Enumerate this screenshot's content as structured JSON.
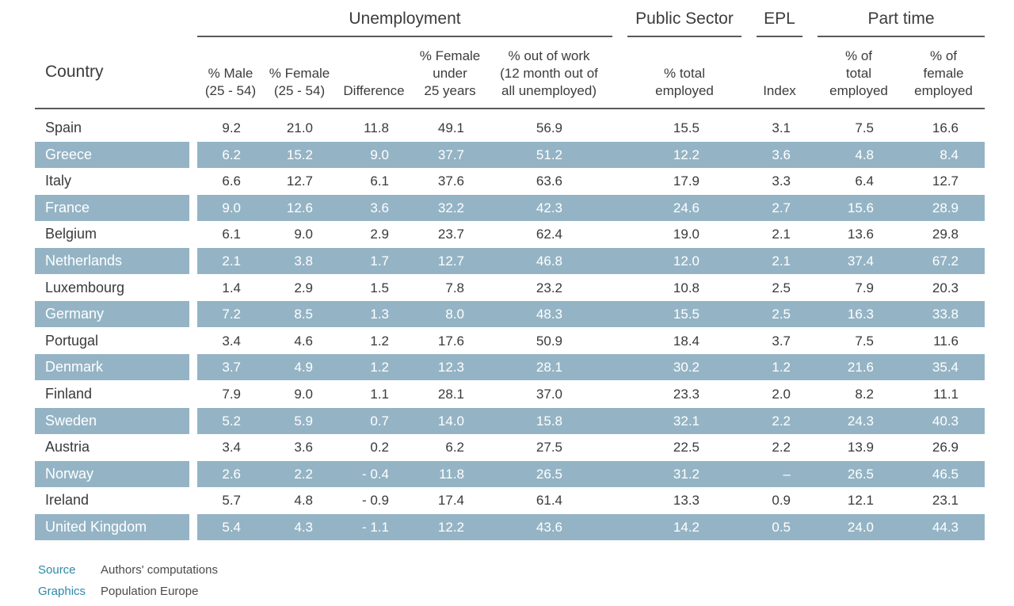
{
  "colors": {
    "band": "#94b4c5",
    "text": "#3a3a3a",
    "band_text": "#ffffff",
    "source_key": "#2b8aa8"
  },
  "groups": {
    "unemployment": "Unemployment",
    "public_sector": "Public Sector",
    "epl": "EPL",
    "part_time": "Part time"
  },
  "headers": {
    "country": "Country",
    "male": "% Male\n(25 - 54)",
    "female": "% Female\n(25 - 54)",
    "difference": "Difference",
    "female_under25": "% Female\nunder\n25 years",
    "out_of_work": "% out of work\n(12 month out of\nall unemployed)",
    "public_total": "% total\nemployed",
    "epl_index": "Index",
    "pt_total": "% of\ntotal\nemployed",
    "pt_female": "% of\nfemale\nemployed"
  },
  "chart_data": {
    "type": "table",
    "columns": [
      "Country",
      "% Male (25 - 54)",
      "% Female (25 - 54)",
      "Difference",
      "% Female under 25 years",
      "% out of work (12 month out of all unemployed)",
      "% total employed",
      "Index",
      "% of total employed",
      "% of female employed"
    ],
    "rows": [
      [
        "Spain",
        "9.2",
        "21.0",
        "11.8",
        "49.1",
        "56.9",
        "15.5",
        "3.1",
        "7.5",
        "16.6"
      ],
      [
        "Greece",
        "6.2",
        "15.2",
        "9.0",
        "37.7",
        "51.2",
        "12.2",
        "3.6",
        "4.8",
        "8.4"
      ],
      [
        "Italy",
        "6.6",
        "12.7",
        "6.1",
        "37.6",
        "63.6",
        "17.9",
        "3.3",
        "6.4",
        "12.7"
      ],
      [
        "France",
        "9.0",
        "12.6",
        "3.6",
        "32.2",
        "42.3",
        "24.6",
        "2.7",
        "15.6",
        "28.9"
      ],
      [
        "Belgium",
        "6.1",
        "9.0",
        "2.9",
        "23.7",
        "62.4",
        "19.0",
        "2.1",
        "13.6",
        "29.8"
      ],
      [
        "Netherlands",
        "2.1",
        "3.8",
        "1.7",
        "12.7",
        "46.8",
        "12.0",
        "2.1",
        "37.4",
        "67.2"
      ],
      [
        "Luxembourg",
        "1.4",
        "2.9",
        "1.5",
        "7.8",
        "23.2",
        "10.8",
        "2.5",
        "7.9",
        "20.3"
      ],
      [
        "Germany",
        "7.2",
        "8.5",
        "1.3",
        "8.0",
        "48.3",
        "15.5",
        "2.5",
        "16.3",
        "33.8"
      ],
      [
        "Portugal",
        "3.4",
        "4.6",
        "1.2",
        "17.6",
        "50.9",
        "18.4",
        "3.7",
        "7.5",
        "11.6"
      ],
      [
        "Denmark",
        "3.7",
        "4.9",
        "1.2",
        "12.3",
        "28.1",
        "30.2",
        "1.2",
        "21.6",
        "35.4"
      ],
      [
        "Finland",
        "7.9",
        "9.0",
        "1.1",
        "28.1",
        "37.0",
        "23.3",
        "2.0",
        "8.2",
        "11.1"
      ],
      [
        "Sweden",
        "5.2",
        "5.9",
        "0.7",
        "14.0",
        "15.8",
        "32.1",
        "2.2",
        "24.3",
        "40.3"
      ],
      [
        "Austria",
        "3.4",
        "3.6",
        "0.2",
        "6.2",
        "27.5",
        "22.5",
        "2.2",
        "13.9",
        "26.9"
      ],
      [
        "Norway",
        "2.6",
        "2.2",
        "- 0.4",
        "11.8",
        "26.5",
        "31.2",
        "–",
        "26.5",
        "46.5"
      ],
      [
        "Ireland",
        "5.7",
        "4.8",
        "- 0.9",
        "17.4",
        "61.4",
        "13.3",
        "0.9",
        "12.1",
        "23.1"
      ],
      [
        "United Kingdom",
        "5.4",
        "4.3",
        "- 1.1",
        "12.2",
        "43.6",
        "14.2",
        "0.5",
        "24.0",
        "44.3"
      ]
    ]
  },
  "footer": {
    "source_label": "Source",
    "source_value": "Authors' computations",
    "graphics_label": "Graphics",
    "graphics_value": "Population Europe"
  }
}
